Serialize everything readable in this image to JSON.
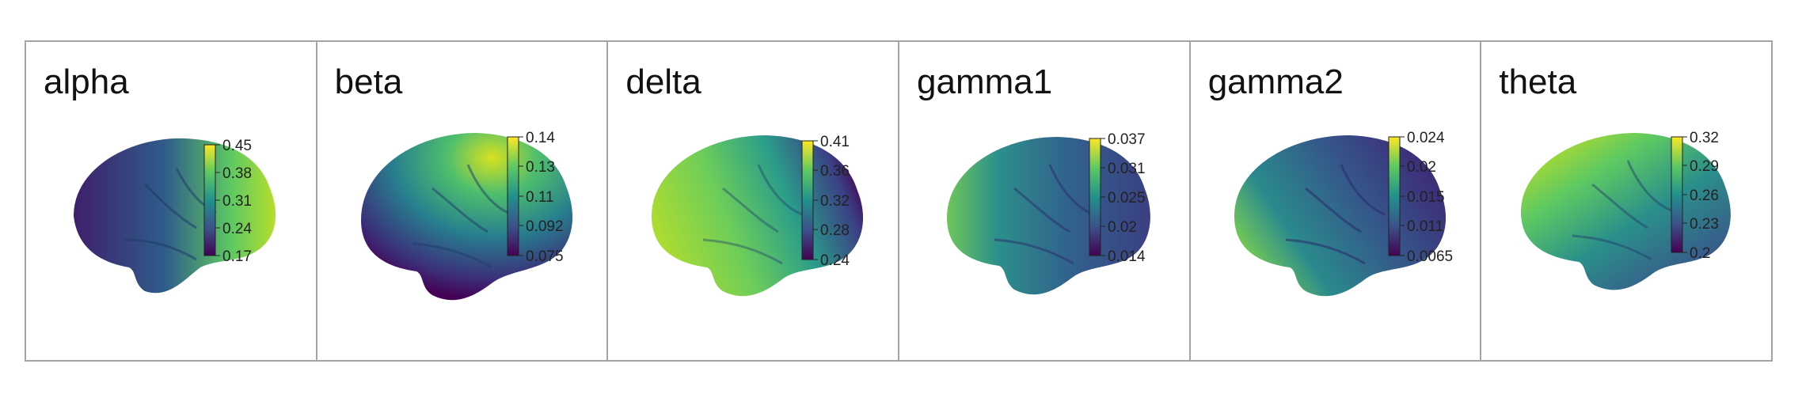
{
  "panels": [
    {
      "label": "alpha",
      "ticks": [
        "0.45",
        "0.38",
        "0.31",
        "0.24",
        "0.17"
      ]
    },
    {
      "label": "beta",
      "ticks": [
        "0.14",
        "0.13",
        "0.11",
        "0.092",
        "0.075"
      ]
    },
    {
      "label": "delta",
      "ticks": [
        "0.41",
        "0.36",
        "0.32",
        "0.28",
        "0.24"
      ]
    },
    {
      "label": "gamma1",
      "ticks": [
        "0.037",
        "0.031",
        "0.025",
        "0.02",
        "0.014"
      ]
    },
    {
      "label": "gamma2",
      "ticks": [
        "0.024",
        "0.02",
        "0.015",
        "0.011",
        "0.0065"
      ]
    },
    {
      "label": "theta",
      "ticks": [
        "0.32",
        "0.29",
        "0.26",
        "0.23",
        "0.2"
      ]
    }
  ],
  "colormap": [
    "#fde725",
    "#5ec962",
    "#21918c",
    "#3b528b",
    "#440154"
  ]
}
